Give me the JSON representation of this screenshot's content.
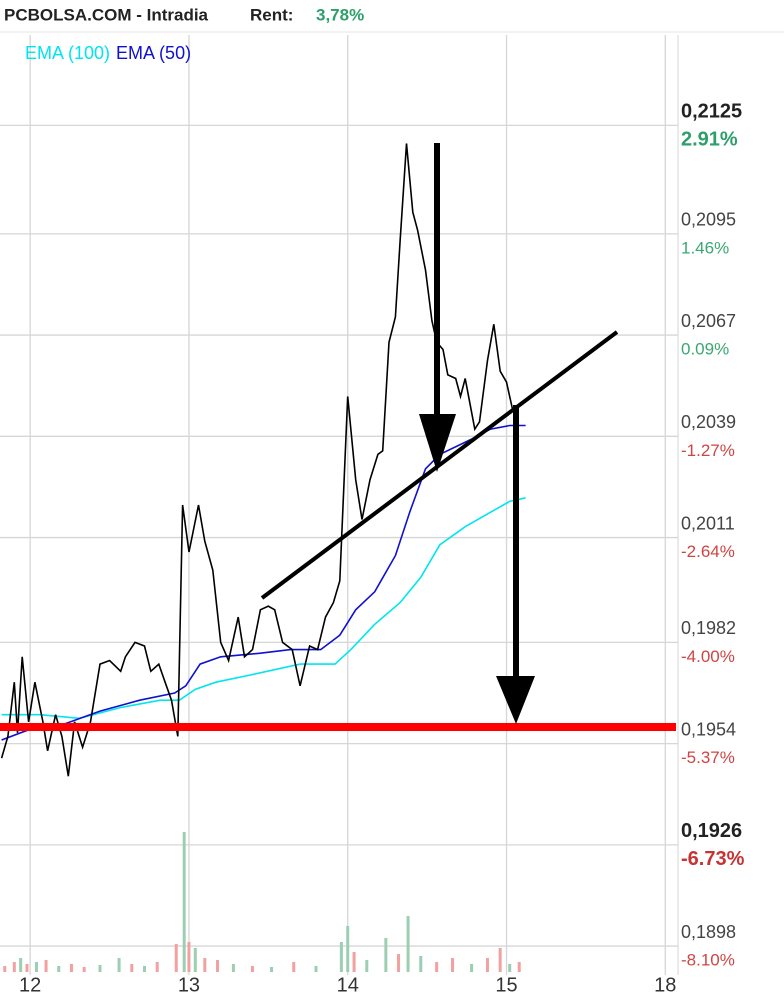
{
  "chart_data": {
    "type": "line",
    "title": "PCBOLSA.COM - Intradia",
    "subtitle_label": "Rent:",
    "subtitle_value": "3,78%",
    "xlim": [
      -0.19,
      4.08
    ],
    "xticks": [
      {
        "value": 0,
        "label": "12"
      },
      {
        "value": 1,
        "label": "13"
      },
      {
        "value": 2,
        "label": "14"
      },
      {
        "value": 3,
        "label": "15"
      },
      {
        "value": 4,
        "label": "18"
      }
    ],
    "ylim": [
      0.189,
      0.215
    ],
    "yticks": [
      {
        "value": 0.2125,
        "label": "0,2125"
      },
      {
        "value": 0.2095,
        "label": "0,2095"
      },
      {
        "value": 0.2067,
        "label": "0,2067"
      },
      {
        "value": 0.2039,
        "label": "0,2039"
      },
      {
        "value": 0.2011,
        "label": "0,2011"
      },
      {
        "value": 0.1982,
        "label": "0,1982"
      },
      {
        "value": 0.1954,
        "label": "0,1954"
      },
      {
        "value": 0.1926,
        "label": "0,1926"
      },
      {
        "value": 0.1898,
        "label": "0,1898"
      }
    ],
    "ytick_change": [
      {
        "value": 2.91,
        "label": "2.91%"
      },
      {
        "value": 1.46,
        "label": "1.46%"
      },
      {
        "value": 0.09,
        "label": "0.09%"
      },
      {
        "value": -1.27,
        "label": "-1.27%"
      },
      {
        "value": -2.64,
        "label": "-2.64%"
      },
      {
        "value": -4.0,
        "label": "-4.00%"
      },
      {
        "value": -5.37,
        "label": "-5.37%"
      },
      {
        "value": -6.73,
        "label": "-6.73%"
      },
      {
        "value": -8.1,
        "label": "-8.10%"
      }
    ],
    "highlight_ticks": [
      0,
      7
    ],
    "grid": true,
    "series": [
      {
        "color": "#000000",
        "x": [
          -0.18,
          -0.14,
          -0.1,
          -0.08,
          -0.05,
          -0.01,
          0.03,
          0.08,
          0.11,
          0.16,
          0.2,
          0.24,
          0.28,
          0.33,
          0.38,
          0.44,
          0.5,
          0.57,
          0.6,
          0.66,
          0.72,
          0.76,
          0.81,
          0.85,
          0.89,
          0.93,
          0.96,
          1.0,
          1.06,
          1.1,
          1.15,
          1.2,
          1.25,
          1.31,
          1.35,
          1.4,
          1.45,
          1.5,
          1.54,
          1.59,
          1.65,
          1.7,
          1.76,
          1.81,
          1.86,
          1.91,
          1.95,
          2.0,
          2.05,
          2.09,
          2.14,
          2.19,
          2.22,
          2.26,
          2.3,
          2.33,
          2.37,
          2.41,
          2.44,
          2.49,
          2.53,
          2.56,
          2.6,
          2.63,
          2.68,
          2.71,
          2.74,
          2.77,
          2.8,
          2.83,
          2.88,
          2.92,
          2.96,
          3.0,
          3.04
        ],
        "values": [
          0.195,
          0.1956,
          0.1971,
          0.1957,
          0.1978,
          0.196,
          0.1971,
          0.196,
          0.1952,
          0.1962,
          0.1956,
          0.1945,
          0.196,
          0.1953,
          0.196,
          0.1976,
          0.1977,
          0.1974,
          0.1978,
          0.1982,
          0.1981,
          0.1974,
          0.1976,
          0.1971,
          0.1966,
          0.1956,
          0.202,
          0.2007,
          0.202,
          0.201,
          0.2002,
          0.1982,
          0.1977,
          0.1989,
          0.1978,
          0.198,
          0.1991,
          0.1992,
          0.1991,
          0.1982,
          0.198,
          0.197,
          0.1981,
          0.198,
          0.1989,
          0.1993,
          0.1999,
          0.205,
          0.2027,
          0.2016,
          0.2027,
          0.2034,
          0.2035,
          0.2065,
          0.2072,
          0.2093,
          0.212,
          0.2101,
          0.2096,
          0.2085,
          0.2071,
          0.2065,
          0.2063,
          0.2056,
          0.2055,
          0.205,
          0.2055,
          0.2048,
          0.2041,
          0.2043,
          0.206,
          0.207,
          0.2057,
          0.2054,
          0.2046
        ]
      },
      {
        "name": "EMA (100)",
        "color": "#00e5ee",
        "x": [
          -0.18,
          0.06,
          0.31,
          0.57,
          0.82,
          0.94,
          1.04,
          1.17,
          1.39,
          1.7,
          1.92,
          2.02,
          2.17,
          2.33,
          2.46,
          2.58,
          2.74,
          2.9,
          3.02,
          3.12
        ],
        "values": [
          0.1962,
          0.1962,
          0.1961,
          0.1964,
          0.1966,
          0.1966,
          0.1969,
          0.1971,
          0.1973,
          0.1976,
          0.1976,
          0.198,
          0.1987,
          0.1993,
          0.2,
          0.2009,
          0.2014,
          0.2018,
          0.2021,
          0.2022
        ]
      },
      {
        "name": "EMA (50)",
        "color": "#1010d0",
        "x": [
          -0.18,
          0.0,
          0.19,
          0.44,
          0.69,
          0.91,
          0.98,
          1.07,
          1.2,
          1.45,
          1.64,
          1.83,
          1.95,
          2.05,
          2.17,
          2.3,
          2.39,
          2.49,
          2.58,
          2.77,
          2.9,
          3.02,
          3.12
        ],
        "values": [
          0.1955,
          0.1958,
          0.1959,
          0.1963,
          0.1966,
          0.1968,
          0.197,
          0.1976,
          0.1978,
          0.1979,
          0.198,
          0.198,
          0.1984,
          0.1991,
          0.1996,
          0.2006,
          0.2018,
          0.203,
          0.2034,
          0.2038,
          0.2041,
          0.2042,
          0.2042
        ]
      }
    ],
    "volume": {
      "x": [
        -0.16,
        -0.1,
        -0.06,
        -0.02,
        0.04,
        0.1,
        0.18,
        0.26,
        0.34,
        0.44,
        0.56,
        0.64,
        0.72,
        0.8,
        0.92,
        0.97,
        1.0,
        1.04,
        1.1,
        1.18,
        1.28,
        1.4,
        1.52,
        1.66,
        1.8,
        1.96,
        2.0,
        2.04,
        2.12,
        2.24,
        2.32,
        2.38,
        2.46,
        2.56,
        2.66,
        2.78,
        2.88,
        2.96,
        3.02,
        3.08
      ],
      "values": [
        6,
        10,
        14,
        8,
        10,
        12,
        6,
        8,
        5,
        7,
        14,
        8,
        6,
        10,
        28,
        140,
        30,
        24,
        14,
        12,
        8,
        6,
        5,
        10,
        6,
        30,
        46,
        20,
        12,
        34,
        18,
        56,
        16,
        10,
        14,
        8,
        14,
        24,
        8,
        10
      ],
      "colors": [
        "#f2a0a0",
        "#f2a0a0",
        "#9ccfb2",
        "#f2a0a0",
        "#9ccfb2",
        "#f2a0a0",
        "#9ccfb2",
        "#f2a0a0",
        "#f2a0a0",
        "#9ccfb2",
        "#9ccfb2",
        "#f2a0a0",
        "#9ccfb2",
        "#f2a0a0",
        "#f2a0a0",
        "#9ccfb2",
        "#f2a0a0",
        "#9ccfb2",
        "#f2a0a0",
        "#f2a0a0",
        "#9ccfb2",
        "#f2a0a0",
        "#9ccfb2",
        "#f2a0a0",
        "#9ccfb2",
        "#9ccfb2",
        "#9ccfb2",
        "#f2a0a0",
        "#9ccfb2",
        "#9ccfb2",
        "#f2a0a0",
        "#9ccfb2",
        "#9ccfb2",
        "#f2a0a0",
        "#f2a0a0",
        "#9ccfb2",
        "#f2a0a0",
        "#f2a0a0",
        "#9ccfb2",
        "#f2a0a0"
      ]
    }
  }
}
